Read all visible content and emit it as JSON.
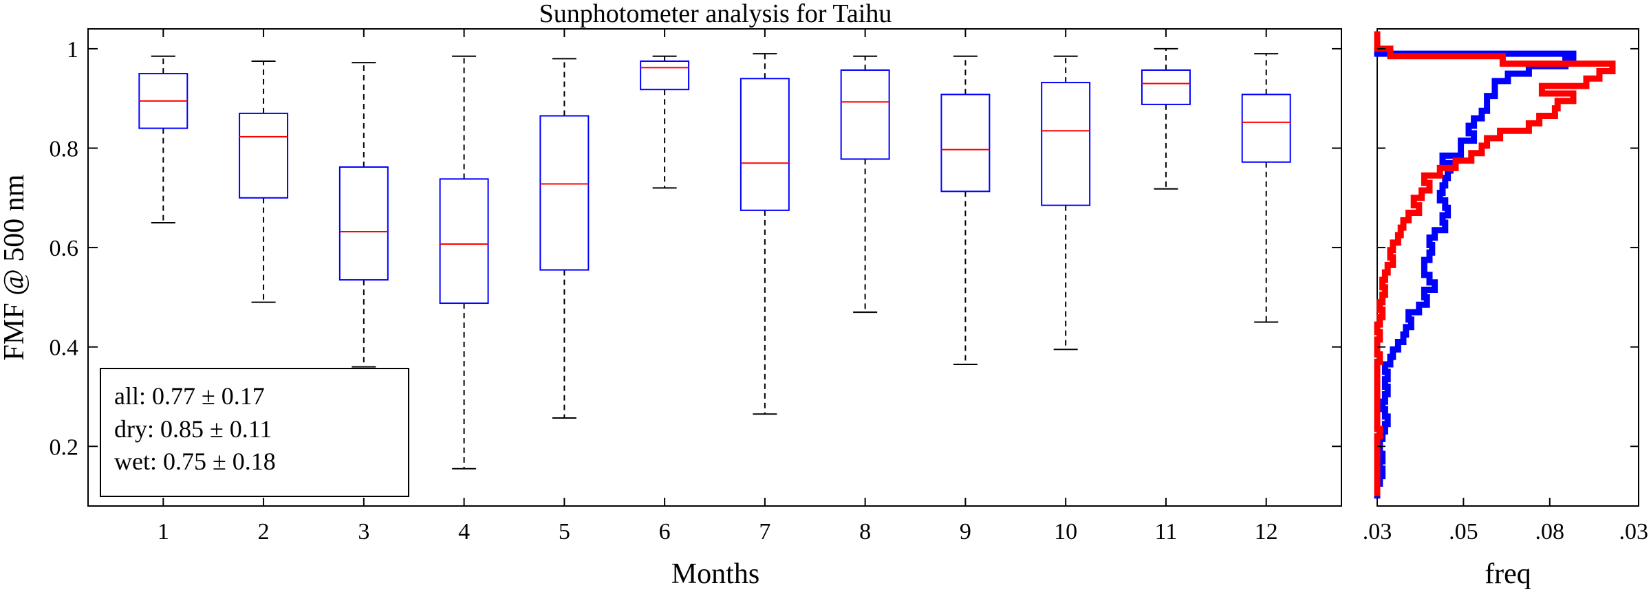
{
  "chart_data": [
    {
      "type": "box",
      "title": "Sunphotometer analysis for Taihu",
      "xlabel": "Months",
      "ylabel": "FMF @ 500 nm",
      "categories": [
        "1",
        "2",
        "3",
        "4",
        "5",
        "6",
        "7",
        "8",
        "9",
        "10",
        "11",
        "12"
      ],
      "ylim": [
        0.08,
        1.04
      ],
      "yticks": [
        0.2,
        0.4,
        0.6,
        0.8,
        1
      ],
      "ytick_labels": [
        "0.2",
        "0.4",
        "0.6",
        "0.8",
        "1"
      ],
      "boxes": [
        {
          "month": "1",
          "whisker_low": 0.65,
          "q1": 0.84,
          "median": 0.895,
          "q3": 0.95,
          "whisker_high": 0.985
        },
        {
          "month": "2",
          "whisker_low": 0.49,
          "q1": 0.7,
          "median": 0.823,
          "q3": 0.87,
          "whisker_high": 0.975
        },
        {
          "month": "3",
          "whisker_low": 0.36,
          "q1": 0.535,
          "median": 0.632,
          "q3": 0.762,
          "whisker_high": 0.972
        },
        {
          "month": "4",
          "whisker_low": 0.155,
          "q1": 0.488,
          "median": 0.607,
          "q3": 0.738,
          "whisker_high": 0.985
        },
        {
          "month": "5",
          "whisker_low": 0.257,
          "q1": 0.555,
          "median": 0.728,
          "q3": 0.865,
          "whisker_high": 0.98
        },
        {
          "month": "6",
          "whisker_low": 0.72,
          "q1": 0.918,
          "median": 0.962,
          "q3": 0.975,
          "whisker_high": 0.985
        },
        {
          "month": "7",
          "whisker_low": 0.265,
          "q1": 0.675,
          "median": 0.77,
          "q3": 0.94,
          "whisker_high": 0.99
        },
        {
          "month": "8",
          "whisker_low": 0.47,
          "q1": 0.778,
          "median": 0.893,
          "q3": 0.957,
          "whisker_high": 0.985
        },
        {
          "month": "9",
          "whisker_low": 0.365,
          "q1": 0.713,
          "median": 0.797,
          "q3": 0.908,
          "whisker_high": 0.985
        },
        {
          "month": "10",
          "whisker_low": 0.395,
          "q1": 0.685,
          "median": 0.835,
          "q3": 0.932,
          "whisker_high": 0.985
        },
        {
          "month": "11",
          "whisker_low": 0.718,
          "q1": 0.888,
          "median": 0.93,
          "q3": 0.957,
          "whisker_high": 1.0
        },
        {
          "month": "12",
          "whisker_low": 0.45,
          "q1": 0.772,
          "median": 0.852,
          "q3": 0.908,
          "whisker_high": 0.99
        }
      ],
      "legend": [
        {
          "text": "all: 0.77 ±  0.17"
        },
        {
          "text": "dry: 0.85 ±  0.11"
        },
        {
          "text": "wet: 0.75 ±  0.18"
        }
      ],
      "legend_placement": "bottom-left",
      "colors": {
        "box": "#0000ff",
        "median": "#ff0000",
        "whisker": "#000000"
      }
    },
    {
      "type": "line",
      "xlabel": "freq",
      "ylim": [
        0.08,
        1.04
      ],
      "xlim": [
        0.0,
        0.1
      ],
      "xticks": [
        0.0,
        0.033,
        0.066,
        0.1
      ],
      "xtick_labels": [
        ".03",
        ".05",
        ".08",
        ".03"
      ],
      "series": [
        {
          "color": "#0000ff",
          "y": [
            1.035,
            1.0,
            0.99,
            0.98,
            0.965,
            0.95,
            0.935,
            0.92,
            0.905,
            0.89,
            0.875,
            0.86,
            0.845,
            0.83,
            0.815,
            0.8,
            0.785,
            0.77,
            0.755,
            0.74,
            0.725,
            0.71,
            0.695,
            0.68,
            0.665,
            0.65,
            0.635,
            0.62,
            0.605,
            0.59,
            0.575,
            0.56,
            0.545,
            0.53,
            0.515,
            0.5,
            0.485,
            0.47,
            0.455,
            0.44,
            0.425,
            0.41,
            0.395,
            0.38,
            0.365,
            0.35,
            0.335,
            0.32,
            0.305,
            0.29,
            0.275,
            0.26,
            0.245,
            0.23,
            0.215,
            0.2,
            0.185,
            0.17,
            0.155,
            0.14,
            0.125,
            0.11,
            0.095
          ],
          "x": [
            0.0,
            0.0,
            0.0,
            0.075,
            0.072,
            0.058,
            0.05,
            0.045,
            0.045,
            0.042,
            0.042,
            0.04,
            0.037,
            0.035,
            0.037,
            0.032,
            0.032,
            0.025,
            0.028,
            0.027,
            0.026,
            0.025,
            0.024,
            0.026,
            0.027,
            0.025,
            0.026,
            0.022,
            0.02,
            0.021,
            0.02,
            0.018,
            0.018,
            0.02,
            0.022,
            0.018,
            0.019,
            0.016,
            0.012,
            0.013,
            0.011,
            0.01,
            0.008,
            0.006,
            0.005,
            0.003,
            0.004,
            0.003,
            0.004,
            0.003,
            0.002,
            0.003,
            0.004,
            0.003,
            0.002,
            0.001,
            0.001,
            0.002,
            0.001,
            0.002,
            0.001,
            0.0,
            0.0
          ]
        },
        {
          "color": "#ff0000",
          "y": [
            1.035,
            1.0,
            0.985,
            0.97,
            0.955,
            0.94,
            0.925,
            0.91,
            0.895,
            0.88,
            0.865,
            0.85,
            0.835,
            0.82,
            0.805,
            0.79,
            0.775,
            0.76,
            0.745,
            0.73,
            0.715,
            0.7,
            0.685,
            0.67,
            0.655,
            0.64,
            0.625,
            0.61,
            0.595,
            0.58,
            0.565,
            0.55,
            0.535,
            0.52,
            0.505,
            0.49,
            0.475,
            0.46,
            0.445,
            0.43,
            0.415,
            0.4,
            0.385,
            0.37,
            0.355,
            0.34,
            0.325,
            0.31,
            0.295,
            0.28,
            0.265,
            0.25,
            0.235,
            0.22,
            0.205,
            0.19,
            0.175,
            0.16,
            0.145,
            0.13,
            0.115,
            0.1
          ],
          "x": [
            0.0,
            0.0,
            0.005,
            0.048,
            0.09,
            0.085,
            0.08,
            0.063,
            0.075,
            0.069,
            0.068,
            0.062,
            0.058,
            0.047,
            0.042,
            0.04,
            0.036,
            0.03,
            0.024,
            0.018,
            0.02,
            0.017,
            0.014,
            0.016,
            0.012,
            0.01,
            0.009,
            0.008,
            0.006,
            0.005,
            0.006,
            0.004,
            0.003,
            0.002,
            0.003,
            0.002,
            0.001,
            0.002,
            0.001,
            0.0,
            0.001,
            0.0,
            0.0,
            0.001,
            0.0,
            0.0,
            0.0,
            0.0,
            0.0,
            0.0,
            0.0,
            0.0,
            0.0,
            0.001,
            0.0,
            0.0,
            0.0,
            0.0,
            0.0,
            0.0,
            0.0,
            0.0
          ]
        }
      ]
    }
  ]
}
